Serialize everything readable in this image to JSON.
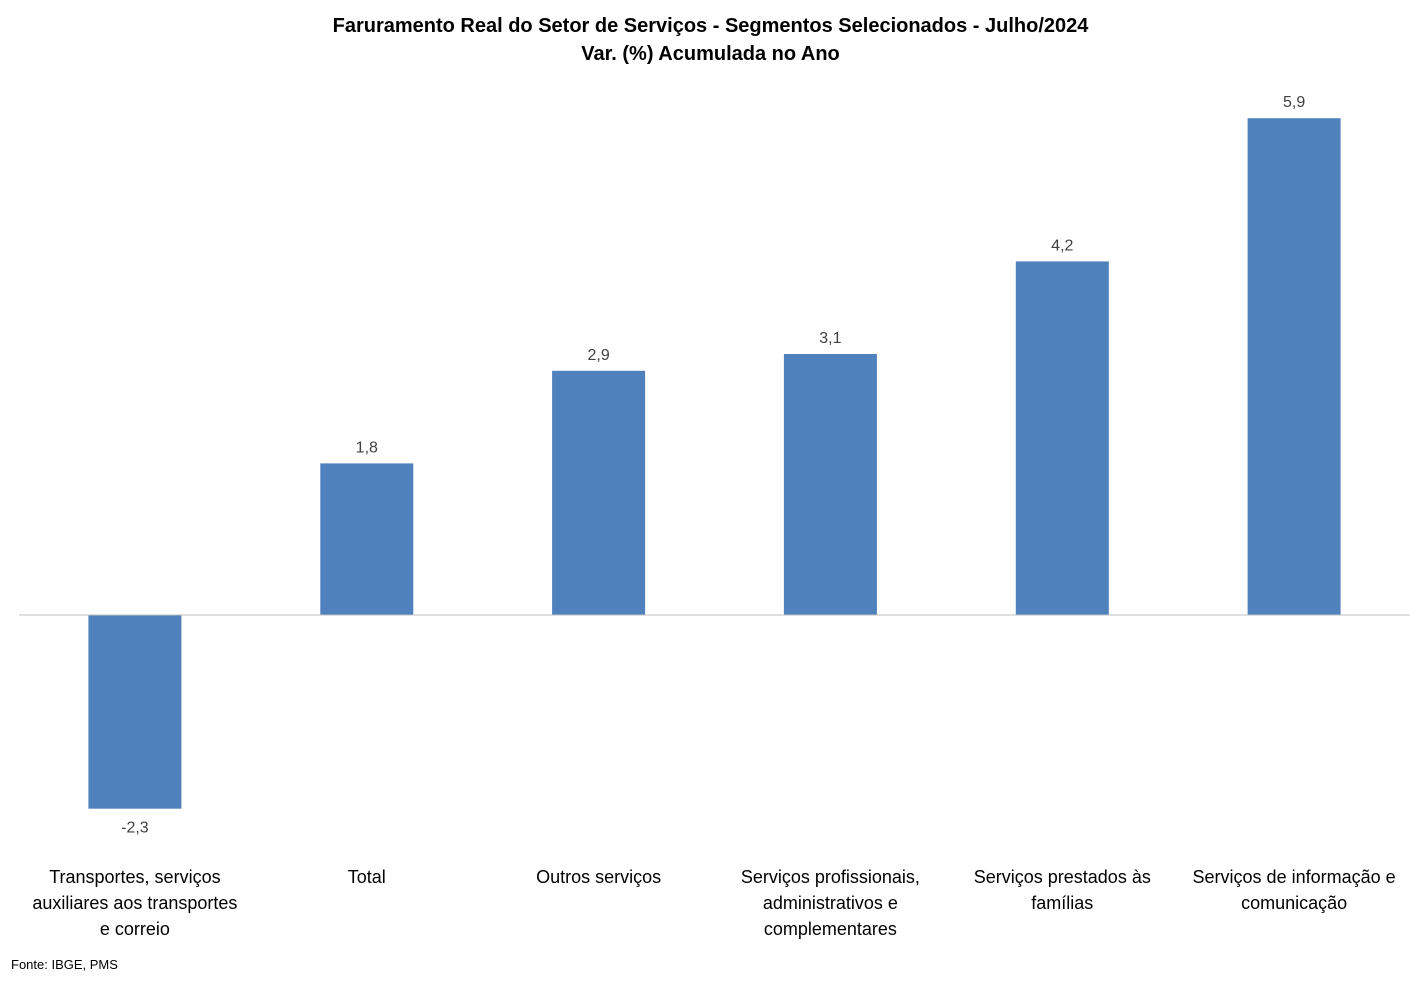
{
  "chart_data": {
    "type": "bar",
    "title": "Faruramento Real do Setor de Serviços - Segmentos Selecionados - Julho/2024",
    "subtitle": "Var. (%) Acumulada no Ano",
    "categories": [
      "Transportes, serviços auxiliares aos transportes e correio",
      "Total",
      "Outros serviços",
      "Serviços profissionais, administrativos e complementares",
      "Serviços prestados às famílias",
      "Serviços de informação e comunicação"
    ],
    "values": [
      -2.3,
      1.8,
      2.9,
      3.1,
      4.2,
      5.9
    ],
    "value_labels": [
      "-2,3",
      "1,8",
      "2,9",
      "3,1",
      "4,2",
      "5,9"
    ],
    "bar_color": "#4F81BD",
    "ylim": [
      -2.3,
      5.9
    ],
    "grid": false,
    "legend": "none"
  },
  "source": "Fonte: IBGE, PMS"
}
